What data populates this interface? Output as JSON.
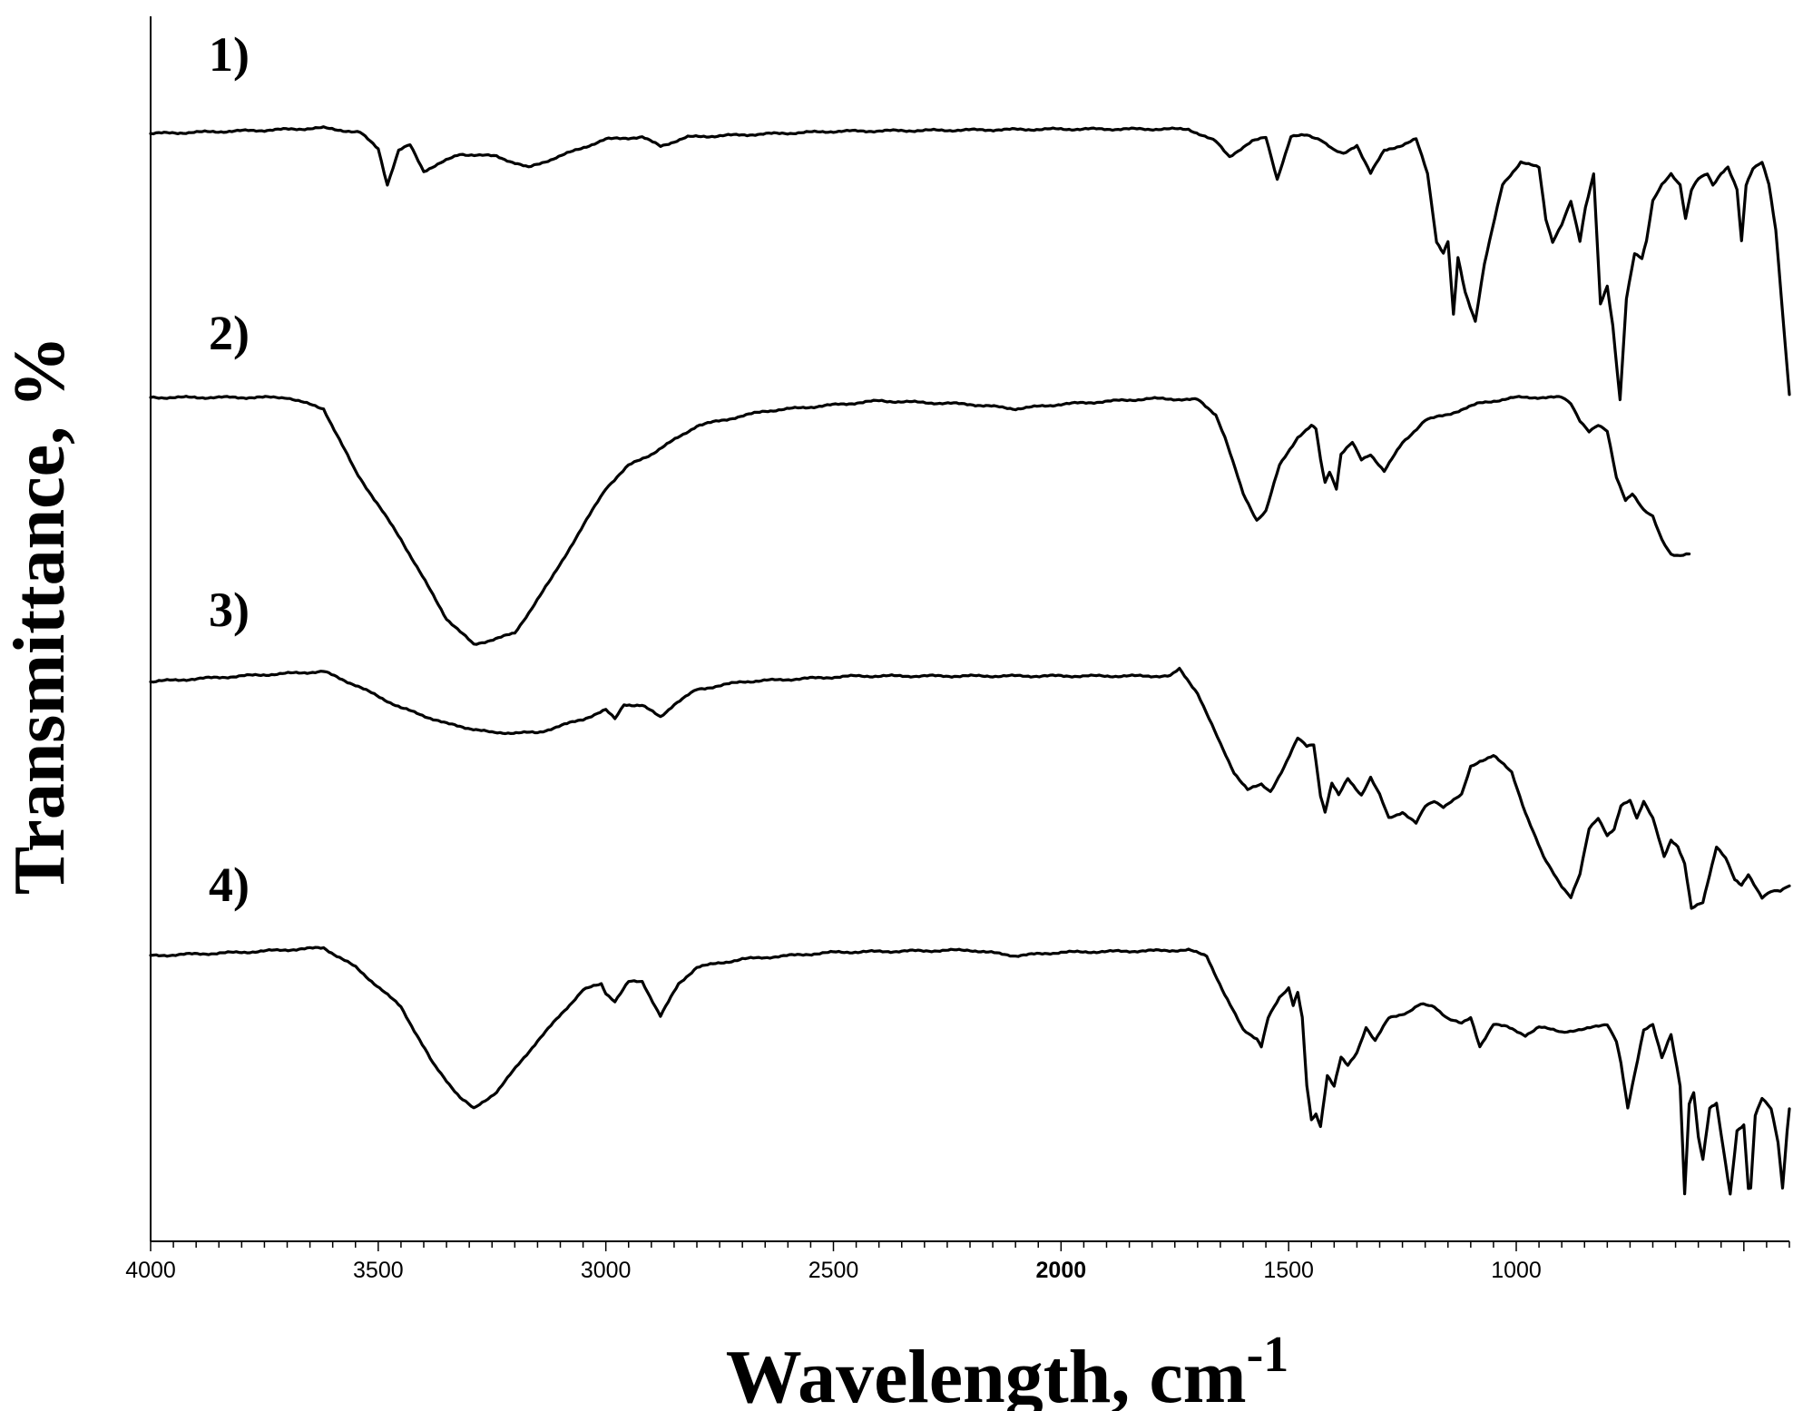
{
  "chart_data": {
    "type": "line",
    "xlabel": "Wavelength, cm",
    "xlabel_superscript": "-1",
    "ylabel": "Transmittance, %",
    "xlim": [
      4000,
      400
    ],
    "x_reversed": true,
    "y_tick_labels": false,
    "grid": false,
    "x_ticks": [
      {
        "value": 4000,
        "label": "4000",
        "bold": false
      },
      {
        "value": 3500,
        "label": "3500",
        "bold": false
      },
      {
        "value": 3000,
        "label": "3000",
        "bold": false
      },
      {
        "value": 2500,
        "label": "2500",
        "bold": false
      },
      {
        "value": 2000,
        "label": "2000",
        "bold": true
      },
      {
        "value": 1500,
        "label": "1500",
        "bold": false
      },
      {
        "value": 1000,
        "label": "1000",
        "bold": false
      }
    ],
    "series": [
      {
        "name": "1)",
        "points": [
          [
            4000,
            0.5
          ],
          [
            3750,
            0.2
          ],
          [
            3620,
            0.0
          ],
          [
            3540,
            0.4
          ],
          [
            3500,
            1.8
          ],
          [
            3480,
            5.0
          ],
          [
            3455,
            2.0
          ],
          [
            3430,
            1.5
          ],
          [
            3400,
            3.8
          ],
          [
            3320,
            2.3
          ],
          [
            3240,
            2.5
          ],
          [
            3170,
            3.5
          ],
          [
            3000,
            1.0
          ],
          [
            2920,
            0.8
          ],
          [
            2880,
            1.6
          ],
          [
            2820,
            0.8
          ],
          [
            2500,
            0.3
          ],
          [
            2000,
            0.1
          ],
          [
            1720,
            0.1
          ],
          [
            1660,
            1.2
          ],
          [
            1630,
            2.5
          ],
          [
            1580,
            1.2
          ],
          [
            1550,
            0.8
          ],
          [
            1525,
            4.5
          ],
          [
            1495,
            0.8
          ],
          [
            1460,
            0.6
          ],
          [
            1430,
            1.0
          ],
          [
            1400,
            2.0
          ],
          [
            1380,
            2.3
          ],
          [
            1350,
            1.5
          ],
          [
            1320,
            4.0
          ],
          [
            1290,
            2.0
          ],
          [
            1250,
            1.5
          ],
          [
            1220,
            1.0
          ],
          [
            1195,
            4.0
          ],
          [
            1175,
            10.0
          ],
          [
            1160,
            11.0
          ],
          [
            1150,
            10.0
          ],
          [
            1138,
            16.5
          ],
          [
            1128,
            11.5
          ],
          [
            1112,
            14.5
          ],
          [
            1090,
            17.0
          ],
          [
            1070,
            12.0
          ],
          [
            1030,
            5.0
          ],
          [
            990,
            3.0
          ],
          [
            950,
            3.5
          ],
          [
            935,
            8.0
          ],
          [
            920,
            10.0
          ],
          [
            900,
            8.5
          ],
          [
            880,
            6.5
          ],
          [
            860,
            10.0
          ],
          [
            848,
            7.0
          ],
          [
            830,
            4.0
          ],
          [
            815,
            15.5
          ],
          [
            800,
            14.0
          ],
          [
            788,
            17.5
          ],
          [
            772,
            24.0
          ],
          [
            758,
            15.0
          ],
          [
            740,
            11.0
          ],
          [
            724,
            11.5
          ],
          [
            714,
            10.0
          ],
          [
            700,
            6.5
          ],
          [
            680,
            5.0
          ],
          [
            660,
            4.0
          ],
          [
            640,
            5.0
          ],
          [
            628,
            8.0
          ],
          [
            615,
            5.5
          ],
          [
            600,
            4.5
          ],
          [
            580,
            4.0
          ],
          [
            568,
            5.0
          ],
          [
            550,
            4.0
          ],
          [
            535,
            3.5
          ],
          [
            515,
            5.5
          ],
          [
            505,
            10.0
          ],
          [
            495,
            5.0
          ],
          [
            480,
            3.5
          ],
          [
            460,
            3.0
          ],
          [
            445,
            5.0
          ],
          [
            430,
            9.0
          ],
          [
            400,
            23.5
          ]
        ]
      },
      {
        "name": "2)",
        "points": [
          [
            4000,
            0.0
          ],
          [
            3700,
            0.0
          ],
          [
            3620,
            1.0
          ],
          [
            3550,
            6.5
          ],
          [
            3450,
            12.5
          ],
          [
            3350,
            19.5
          ],
          [
            3290,
            21.8
          ],
          [
            3200,
            20.8
          ],
          [
            3120,
            16.0
          ],
          [
            3000,
            8.0
          ],
          [
            2950,
            6.0
          ],
          [
            2900,
            5.0
          ],
          [
            2860,
            4.0
          ],
          [
            2800,
            2.5
          ],
          [
            2650,
            1.2
          ],
          [
            2400,
            0.3
          ],
          [
            2200,
            0.6
          ],
          [
            2100,
            1.0
          ],
          [
            2000,
            0.6
          ],
          [
            1800,
            0.1
          ],
          [
            1700,
            0.2
          ],
          [
            1660,
            1.5
          ],
          [
            1640,
            3.5
          ],
          [
            1600,
            8.5
          ],
          [
            1570,
            10.8
          ],
          [
            1550,
            10.0
          ],
          [
            1520,
            6.0
          ],
          [
            1480,
            3.5
          ],
          [
            1450,
            2.5
          ],
          [
            1440,
            2.8
          ],
          [
            1430,
            5.5
          ],
          [
            1420,
            7.5
          ],
          [
            1410,
            6.5
          ],
          [
            1395,
            8.0
          ],
          [
            1385,
            5.0
          ],
          [
            1360,
            4.0
          ],
          [
            1340,
            5.5
          ],
          [
            1320,
            5.0
          ],
          [
            1290,
            6.5
          ],
          [
            1250,
            4.0
          ],
          [
            1200,
            2.0
          ],
          [
            1150,
            1.5
          ],
          [
            1080,
            0.5
          ],
          [
            1000,
            0.0
          ],
          [
            900,
            0.0
          ],
          [
            880,
            0.5
          ],
          [
            860,
            2.0
          ],
          [
            840,
            3.0
          ],
          [
            820,
            2.5
          ],
          [
            800,
            3.0
          ],
          [
            780,
            7.0
          ],
          [
            760,
            9.0
          ],
          [
            745,
            8.5
          ],
          [
            720,
            10.0
          ],
          [
            700,
            10.5
          ],
          [
            680,
            12.5
          ],
          [
            660,
            13.8
          ],
          [
            640,
            14.0
          ],
          [
            620,
            13.8
          ]
        ]
      },
      {
        "name": "3)",
        "points": [
          [
            4000,
            0.5
          ],
          [
            3800,
            0.0
          ],
          [
            3620,
            -0.4
          ],
          [
            3550,
            0.8
          ],
          [
            3450,
            2.8
          ],
          [
            3350,
            4.2
          ],
          [
            3250,
            5.0
          ],
          [
            3150,
            5.0
          ],
          [
            3050,
            3.8
          ],
          [
            3000,
            3.0
          ],
          [
            2980,
            3.8
          ],
          [
            2960,
            2.5
          ],
          [
            2920,
            2.6
          ],
          [
            2880,
            3.6
          ],
          [
            2850,
            2.5
          ],
          [
            2800,
            1.2
          ],
          [
            2700,
            0.5
          ],
          [
            2450,
            0.0
          ],
          [
            2000,
            0.0
          ],
          [
            1760,
            0.0
          ],
          [
            1740,
            -0.6
          ],
          [
            1700,
            1.5
          ],
          [
            1650,
            6.0
          ],
          [
            1620,
            8.5
          ],
          [
            1590,
            10.0
          ],
          [
            1560,
            9.6
          ],
          [
            1540,
            10.2
          ],
          [
            1510,
            8.0
          ],
          [
            1480,
            5.5
          ],
          [
            1460,
            6.2
          ],
          [
            1445,
            6.0
          ],
          [
            1430,
            10.5
          ],
          [
            1420,
            12.0
          ],
          [
            1405,
            9.5
          ],
          [
            1390,
            10.5
          ],
          [
            1370,
            9.0
          ],
          [
            1340,
            10.5
          ],
          [
            1320,
            9.0
          ],
          [
            1300,
            10.5
          ],
          [
            1280,
            12.5
          ],
          [
            1250,
            12.0
          ],
          [
            1220,
            13.0
          ],
          [
            1200,
            11.5
          ],
          [
            1180,
            11.0
          ],
          [
            1160,
            11.5
          ],
          [
            1120,
            10.5
          ],
          [
            1100,
            8.0
          ],
          [
            1080,
            7.5
          ],
          [
            1050,
            7.0
          ],
          [
            1010,
            8.5
          ],
          [
            980,
            12.0
          ],
          [
            940,
            16.0
          ],
          [
            900,
            18.5
          ],
          [
            880,
            19.5
          ],
          [
            860,
            17.5
          ],
          [
            840,
            13.5
          ],
          [
            820,
            12.5
          ],
          [
            800,
            14.0
          ],
          [
            785,
            13.5
          ],
          [
            770,
            11.5
          ],
          [
            750,
            11.0
          ],
          [
            735,
            12.5
          ],
          [
            720,
            11.0
          ],
          [
            700,
            12.5
          ],
          [
            675,
            16.0
          ],
          [
            660,
            14.5
          ],
          [
            645,
            15.0
          ],
          [
            630,
            16.5
          ],
          [
            615,
            20.5
          ],
          [
            590,
            20.0
          ],
          [
            575,
            17.5
          ],
          [
            560,
            15.0
          ],
          [
            540,
            16.0
          ],
          [
            520,
            18.0
          ],
          [
            505,
            18.5
          ],
          [
            490,
            17.5
          ],
          [
            460,
            19.5
          ],
          [
            440,
            19.0
          ],
          [
            420,
            19.0
          ],
          [
            400,
            18.5
          ]
        ]
      },
      {
        "name": "4)",
        "points": [
          [
            4000,
            0.5
          ],
          [
            3800,
            0.2
          ],
          [
            3620,
            -0.2
          ],
          [
            3550,
            1.5
          ],
          [
            3450,
            5.0
          ],
          [
            3380,
            10.0
          ],
          [
            3320,
            13.0
          ],
          [
            3290,
            14.0
          ],
          [
            3240,
            12.5
          ],
          [
            3150,
            8.0
          ],
          [
            3050,
            3.5
          ],
          [
            3010,
            3.0
          ],
          [
            3000,
            3.8
          ],
          [
            2980,
            4.5
          ],
          [
            2950,
            2.8
          ],
          [
            2920,
            2.8
          ],
          [
            2880,
            5.8
          ],
          [
            2840,
            3.0
          ],
          [
            2800,
            1.5
          ],
          [
            2700,
            0.8
          ],
          [
            2500,
            0.2
          ],
          [
            2200,
            0.0
          ],
          [
            2100,
            0.5
          ],
          [
            2000,
            0.2
          ],
          [
            1850,
            0.1
          ],
          [
            1720,
            0.0
          ],
          [
            1680,
            0.5
          ],
          [
            1640,
            4.0
          ],
          [
            1600,
            7.0
          ],
          [
            1570,
            7.8
          ],
          [
            1560,
            8.5
          ],
          [
            1545,
            6.0
          ],
          [
            1520,
            4.2
          ],
          [
            1500,
            3.3
          ],
          [
            1490,
            4.8
          ],
          [
            1480,
            3.7
          ],
          [
            1470,
            6.0
          ],
          [
            1460,
            12.0
          ],
          [
            1450,
            15.0
          ],
          [
            1440,
            14.5
          ],
          [
            1430,
            15.5
          ],
          [
            1415,
            11.0
          ],
          [
            1400,
            12.0
          ],
          [
            1385,
            9.5
          ],
          [
            1370,
            10.2
          ],
          [
            1350,
            9.0
          ],
          [
            1330,
            6.8
          ],
          [
            1310,
            8.0
          ],
          [
            1280,
            6.0
          ],
          [
            1240,
            5.5
          ],
          [
            1210,
            4.8
          ],
          [
            1180,
            5.0
          ],
          [
            1150,
            6.0
          ],
          [
            1120,
            6.5
          ],
          [
            1100,
            6.0
          ],
          [
            1080,
            8.5
          ],
          [
            1050,
            6.5
          ],
          [
            1020,
            6.8
          ],
          [
            980,
            7.5
          ],
          [
            950,
            6.8
          ],
          [
            900,
            7.2
          ],
          [
            850,
            7.0
          ],
          [
            800,
            6.5
          ],
          [
            780,
            8.0
          ],
          [
            770,
            10.0
          ],
          [
            755,
            14.0
          ],
          [
            740,
            11.0
          ],
          [
            720,
            7.0
          ],
          [
            700,
            6.5
          ],
          [
            680,
            9.5
          ],
          [
            660,
            7.5
          ],
          [
            640,
            12.0
          ],
          [
            630,
            21.5
          ],
          [
            620,
            13.5
          ],
          [
            610,
            12.5
          ],
          [
            600,
            16.5
          ],
          [
            590,
            18.5
          ],
          [
            575,
            14.0
          ],
          [
            560,
            13.5
          ],
          [
            545,
            17.5
          ],
          [
            530,
            21.5
          ],
          [
            515,
            16.0
          ],
          [
            500,
            15.5
          ],
          [
            490,
            21.0
          ],
          [
            485,
            21.0
          ],
          [
            475,
            14.5
          ],
          [
            460,
            13.0
          ],
          [
            440,
            14.0
          ],
          [
            425,
            17.0
          ],
          [
            415,
            21.0
          ],
          [
            405,
            16.0
          ],
          [
            400,
            14.0
          ]
        ]
      }
    ]
  }
}
